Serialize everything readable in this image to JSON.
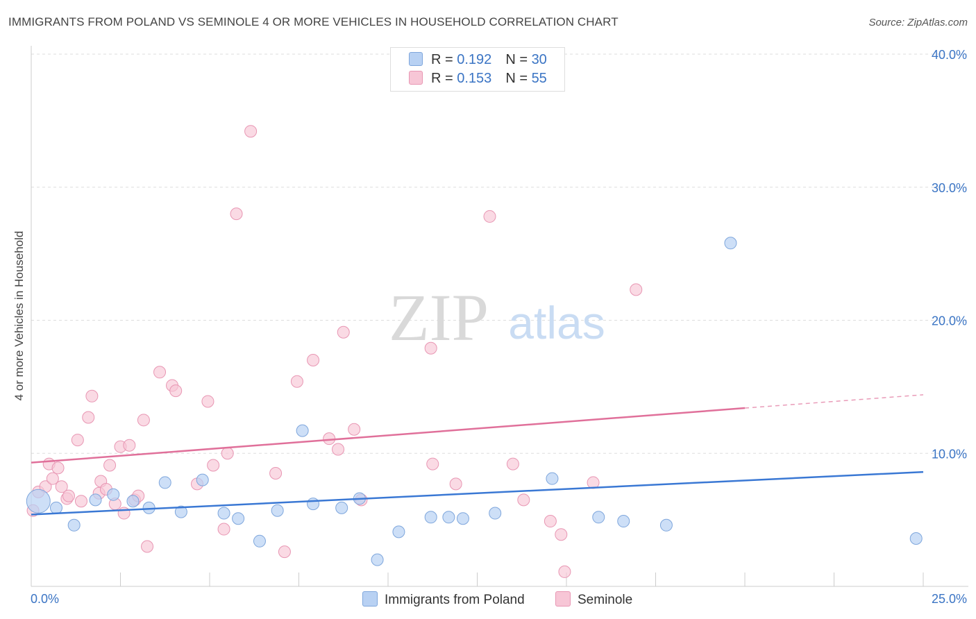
{
  "title": "IMMIGRANTS FROM POLAND VS SEMINOLE 4 OR MORE VEHICLES IN HOUSEHOLD CORRELATION CHART",
  "source": "Source: ZipAtlas.com",
  "watermark": {
    "zip": "ZIP",
    "atlas": "atlas"
  },
  "legend": {
    "poland": {
      "r_label": "R = ",
      "r_value": "0.192",
      "n_label": "N = ",
      "n_value": "30"
    },
    "seminole": {
      "r_label": "R = ",
      "r_value": "0.153",
      "n_label": "N = ",
      "n_value": "55"
    }
  },
  "colors": {
    "poland_fill": "#b8d1f3",
    "poland_stroke": "#7ea6dc",
    "poland_line": "#3a78d4",
    "seminole_fill": "#f7c6d6",
    "seminole_stroke": "#e896b3",
    "seminole_line": "#e0709a",
    "tick_label": "#3a74c4",
    "grid": "#dddddd"
  },
  "chart_data": {
    "type": "scatter",
    "title": "IMMIGRANTS FROM POLAND VS SEMINOLE 4 OR MORE VEHICLES IN HOUSEHOLD CORRELATION CHART",
    "xlabel": "",
    "ylabel": "4 or more Vehicles in Household",
    "xlim": [
      0,
      25
    ],
    "ylim": [
      0,
      40
    ],
    "x_tick_labels": [
      "0.0%",
      "25.0%"
    ],
    "y_ticks": [
      10,
      20,
      30,
      40
    ],
    "y_tick_labels": [
      "10.0%",
      "20.0%",
      "30.0%",
      "40.0%"
    ],
    "legend_position": "top-center",
    "series": [
      {
        "name": "Immigrants from Poland",
        "r": 0.192,
        "n": 30,
        "points": [
          [
            0.2,
            6.4
          ],
          [
            0.7,
            5.9
          ],
          [
            1.2,
            4.6
          ],
          [
            1.8,
            6.5
          ],
          [
            2.3,
            6.9
          ],
          [
            2.85,
            6.4
          ],
          [
            3.3,
            5.9
          ],
          [
            3.75,
            7.8
          ],
          [
            4.2,
            5.6
          ],
          [
            4.8,
            8.0
          ],
          [
            5.4,
            5.5
          ],
          [
            5.8,
            5.1
          ],
          [
            6.4,
            3.4
          ],
          [
            6.9,
            5.7
          ],
          [
            7.6,
            11.7
          ],
          [
            7.9,
            6.2
          ],
          [
            8.7,
            5.9
          ],
          [
            9.2,
            6.6
          ],
          [
            9.7,
            2.0
          ],
          [
            10.3,
            4.1
          ],
          [
            11.2,
            5.2
          ],
          [
            11.7,
            5.2
          ],
          [
            12.1,
            5.1
          ],
          [
            13.0,
            5.5
          ],
          [
            14.6,
            8.1
          ],
          [
            15.9,
            5.2
          ],
          [
            16.6,
            4.9
          ],
          [
            17.8,
            4.6
          ],
          [
            19.6,
            25.8
          ],
          [
            24.8,
            3.6
          ]
        ],
        "trend": {
          "x0": 0,
          "y0": 5.4,
          "x1": 25,
          "y1": 8.6
        }
      },
      {
        "name": "Seminole",
        "r": 0.153,
        "n": 55,
        "points": [
          [
            0.05,
            5.7
          ],
          [
            0.2,
            7.1
          ],
          [
            0.4,
            7.5
          ],
          [
            0.5,
            9.2
          ],
          [
            0.6,
            8.1
          ],
          [
            0.75,
            8.9
          ],
          [
            0.85,
            7.5
          ],
          [
            1.0,
            6.6
          ],
          [
            1.05,
            6.8
          ],
          [
            1.3,
            11.0
          ],
          [
            1.4,
            6.4
          ],
          [
            1.6,
            12.7
          ],
          [
            1.7,
            14.3
          ],
          [
            1.9,
            7.0
          ],
          [
            1.95,
            7.9
          ],
          [
            2.1,
            7.3
          ],
          [
            2.2,
            9.1
          ],
          [
            2.35,
            6.2
          ],
          [
            2.5,
            10.5
          ],
          [
            2.6,
            5.5
          ],
          [
            2.75,
            10.6
          ],
          [
            2.9,
            6.5
          ],
          [
            3.0,
            6.8
          ],
          [
            3.15,
            12.5
          ],
          [
            3.25,
            3.0
          ],
          [
            3.6,
            16.1
          ],
          [
            3.95,
            15.1
          ],
          [
            4.05,
            14.7
          ],
          [
            4.65,
            7.7
          ],
          [
            4.95,
            13.9
          ],
          [
            5.1,
            9.1
          ],
          [
            5.4,
            4.3
          ],
          [
            5.5,
            10.0
          ],
          [
            5.75,
            28.0
          ],
          [
            6.15,
            34.2
          ],
          [
            6.85,
            8.5
          ],
          [
            7.1,
            2.6
          ],
          [
            7.45,
            15.4
          ],
          [
            7.9,
            17.0
          ],
          [
            8.35,
            11.1
          ],
          [
            8.6,
            10.3
          ],
          [
            8.75,
            19.1
          ],
          [
            9.05,
            11.8
          ],
          [
            9.25,
            6.5
          ],
          [
            11.2,
            17.9
          ],
          [
            11.25,
            9.2
          ],
          [
            11.9,
            7.7
          ],
          [
            12.85,
            27.8
          ],
          [
            13.5,
            9.2
          ],
          [
            13.8,
            6.5
          ],
          [
            14.55,
            4.9
          ],
          [
            14.85,
            3.9
          ],
          [
            14.95,
            1.1
          ],
          [
            15.75,
            7.8
          ],
          [
            16.95,
            22.3
          ]
        ],
        "trend": {
          "x0": 0,
          "y0": 9.3,
          "x1": 20,
          "y1": 13.4
        },
        "trend_dashed": {
          "x0": 20,
          "y0": 13.4,
          "x1": 25,
          "y1": 14.4
        }
      }
    ]
  }
}
